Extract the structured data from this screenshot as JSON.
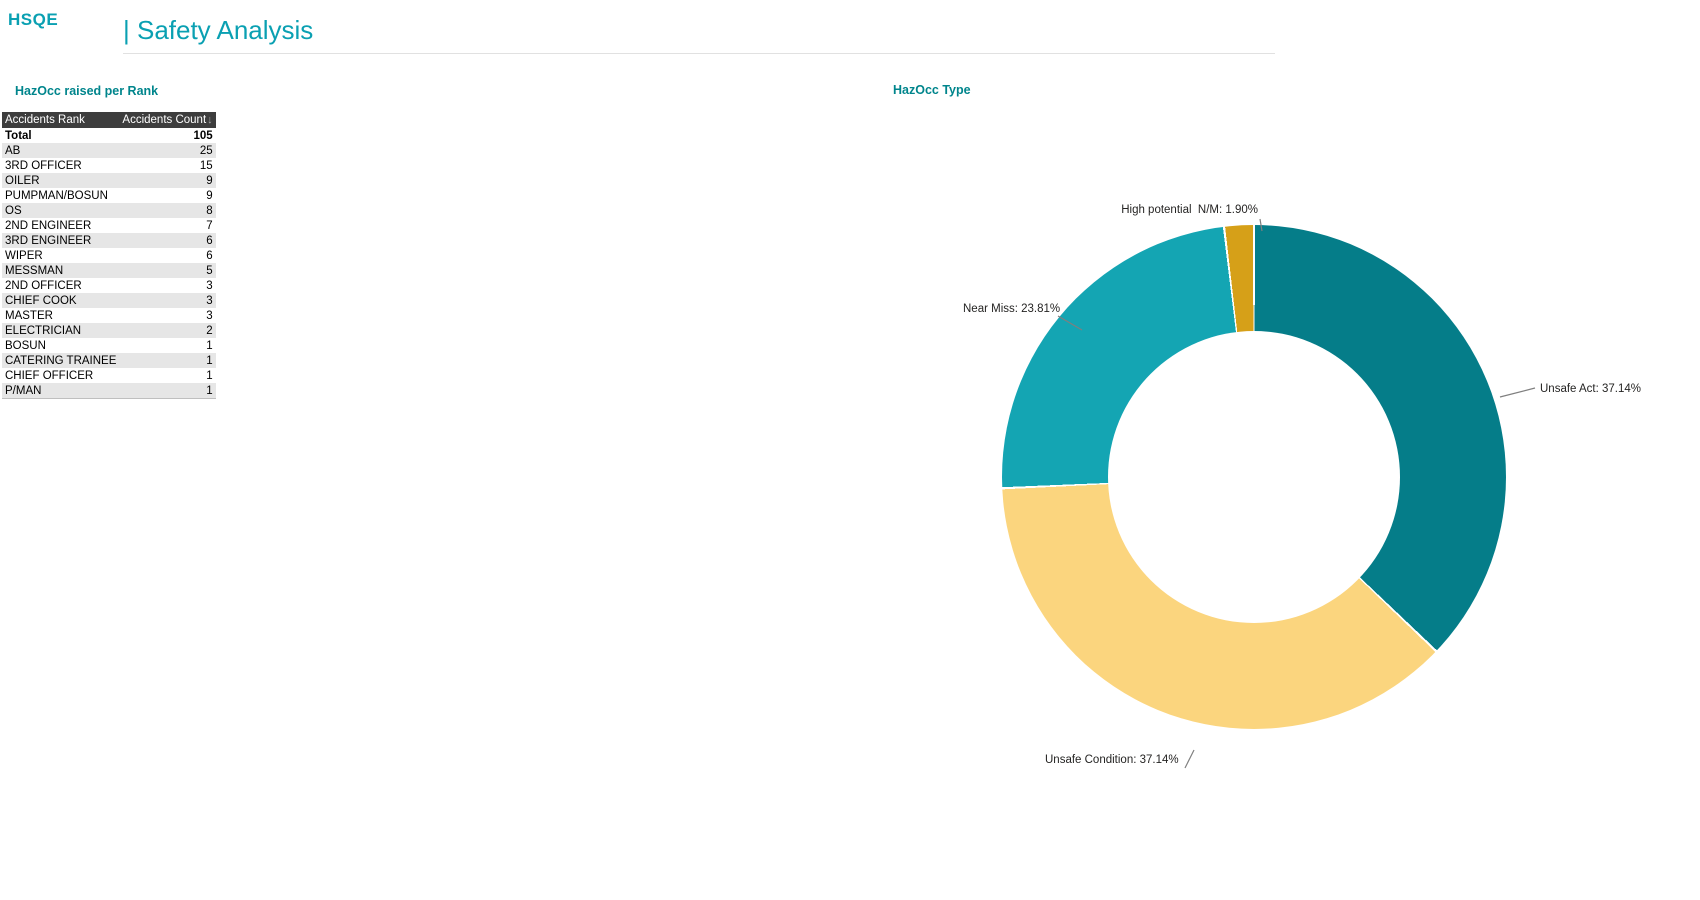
{
  "app": {
    "logo": "HSQE",
    "page_title": "| Safety Analysis"
  },
  "colors": {
    "accent_teal": "#0aa0b2",
    "visual_title_teal": "#00858c",
    "table_header_bg": "#3d3d3d",
    "table_alt_row_bg": "#e6e6e6",
    "leader_line": "#7f7f7f"
  },
  "rank_table": {
    "title": "HazOcc raised per Rank",
    "columns": [
      "Accidents Rank",
      "Accidents Count"
    ],
    "sort_icon": "↓",
    "total_row": {
      "rank": "Total",
      "count": "105"
    },
    "rows": [
      {
        "rank": "AB",
        "count": "25"
      },
      {
        "rank": "3RD OFFICER",
        "count": "15"
      },
      {
        "rank": "OILER",
        "count": "9"
      },
      {
        "rank": "PUMPMAN/BOSUN",
        "count": "9"
      },
      {
        "rank": "OS",
        "count": "8"
      },
      {
        "rank": "2ND ENGINEER",
        "count": "7"
      },
      {
        "rank": "3RD ENGINEER",
        "count": "6"
      },
      {
        "rank": "WIPER",
        "count": "6"
      },
      {
        "rank": "MESSMAN",
        "count": "5"
      },
      {
        "rank": "2ND OFFICER",
        "count": "3"
      },
      {
        "rank": "CHIEF COOK",
        "count": "3"
      },
      {
        "rank": "MASTER",
        "count": "3"
      },
      {
        "rank": "ELECTRICIAN",
        "count": "2"
      },
      {
        "rank": "BOSUN",
        "count": "1"
      },
      {
        "rank": "CATERING TRAINEE",
        "count": "1"
      },
      {
        "rank": "CHIEF OFFICER",
        "count": "1"
      },
      {
        "rank": "P/MAN",
        "count": "1"
      }
    ]
  },
  "chart_data": {
    "type": "pie",
    "subtype": "donut",
    "title": "HazOcc Type",
    "categories": [
      "Unsafe Act",
      "Unsafe Condition",
      "Near Miss",
      "High potential  N/M"
    ],
    "values": [
      37.14,
      37.14,
      23.81,
      1.9
    ],
    "unit": "percent",
    "colors": [
      "#057d89",
      "#fbd57e",
      "#14a5b3",
      "#d6a018"
    ],
    "callouts": [
      "Unsafe Act: 37.14%",
      "Unsafe Condition: 37.14%",
      "Near Miss: 23.81%",
      "High potential  N/M: 1.90%"
    ],
    "start_angle_deg": 0,
    "direction": "clockwise",
    "inner_radius_ratio": 0.58,
    "legend_position": "none"
  }
}
